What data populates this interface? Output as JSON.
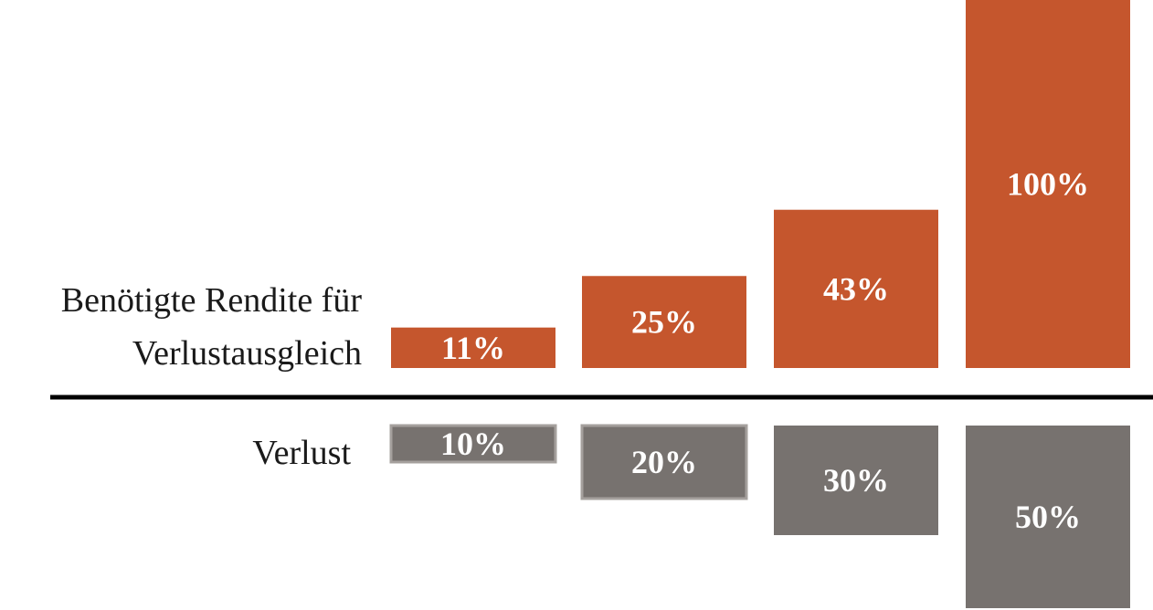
{
  "chart_data": {
    "type": "bar",
    "title": "",
    "categories": [
      "10%",
      "20%",
      "30%",
      "50%"
    ],
    "series": [
      {
        "name": "Benötigte Rendite für Verlustausgleich",
        "name_lines": [
          "Benötigte Rendite für",
          "Verlustausgleich"
        ],
        "values": [
          11,
          25,
          43,
          100
        ],
        "labels": [
          "11%",
          "25%",
          "43%",
          "100%"
        ],
        "color": "#c5562d"
      },
      {
        "name": "Verlust",
        "values": [
          10,
          20,
          30,
          50
        ],
        "labels": [
          "10%",
          "20%",
          "30%",
          "50%"
        ],
        "color": "#77726f"
      }
    ],
    "label_color": "#ffffff",
    "axis_color": "#000000",
    "grid": false,
    "legend": "none"
  }
}
